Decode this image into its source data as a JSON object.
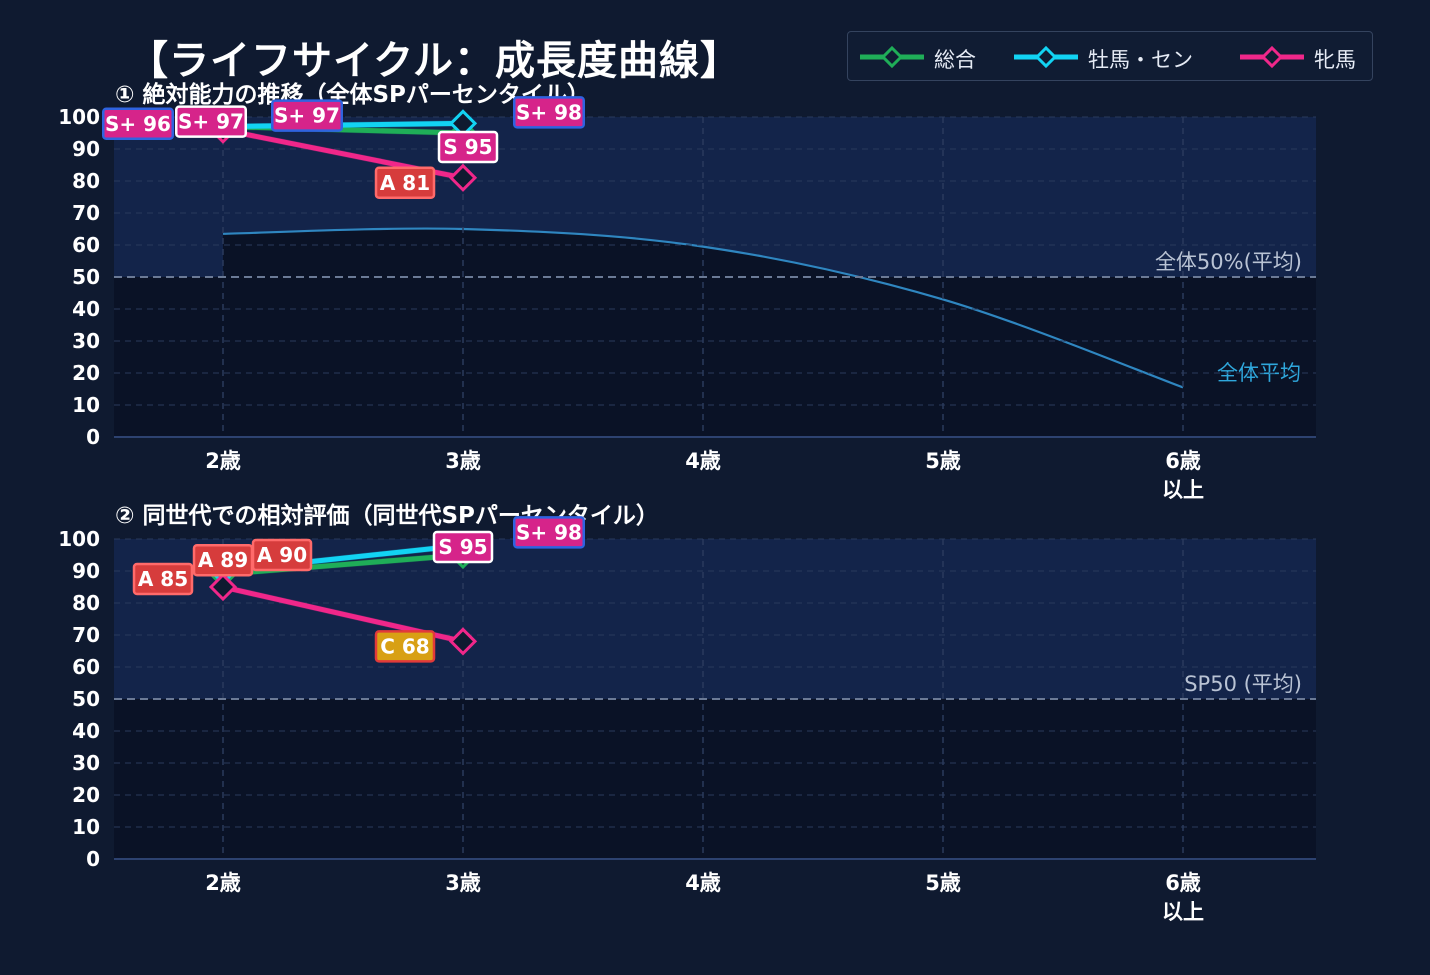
{
  "title": "【ライフサイクル：成長度曲線】",
  "legend": [
    {
      "name": "総合",
      "color": "#1fae58"
    },
    {
      "name": "牡馬・セン",
      "color": "#12d3f3"
    },
    {
      "name": "牝馬",
      "color": "#f0278a"
    }
  ],
  "chart_data": [
    {
      "type": "line",
      "title": "① 絶対能力の推移（全体SPパーセンタイル）",
      "categories": [
        [
          "2歳"
        ],
        [
          "3歳"
        ],
        [
          "4歳"
        ],
        [
          "5歳"
        ],
        [
          "6歳",
          "以上"
        ]
      ],
      "ylim": [
        0,
        100
      ],
      "yticks": [
        0,
        10,
        20,
        30,
        40,
        50,
        60,
        70,
        80,
        90,
        100
      ],
      "grid": true,
      "reference_line": {
        "y": 50,
        "label": "全体50%(平均)"
      },
      "average_curve": {
        "label": "全体平均",
        "color": "#2f86c0",
        "points": [
          [
            0,
            63.5
          ],
          [
            1,
            65
          ],
          [
            2,
            59.5
          ],
          [
            3,
            43
          ],
          [
            4,
            15.5
          ]
        ]
      },
      "series": [
        {
          "name": "総合",
          "color": "#1fae58",
          "x": [
            0,
            1
          ],
          "values": [
            97,
            95
          ],
          "labels": [
            "S+ 97",
            "S 95"
          ]
        },
        {
          "name": "牡馬・セン",
          "color": "#12d3f3",
          "x": [
            0,
            1
          ],
          "values": [
            97,
            98
          ],
          "labels": [
            "S+ 97",
            "S+ 98"
          ]
        },
        {
          "name": "牝馬",
          "color": "#f0278a",
          "x": [
            0,
            1
          ],
          "values": [
            96,
            81
          ],
          "labels": [
            "S+ 96",
            "A 81"
          ]
        }
      ]
    },
    {
      "type": "line",
      "title": "② 同世代での相対評価（同世代SPパーセンタイル）",
      "categories": [
        [
          "2歳"
        ],
        [
          "3歳"
        ],
        [
          "4歳"
        ],
        [
          "5歳"
        ],
        [
          "6歳",
          "以上"
        ]
      ],
      "ylim": [
        0,
        100
      ],
      "yticks": [
        0,
        10,
        20,
        30,
        40,
        50,
        60,
        70,
        80,
        90,
        100
      ],
      "grid": true,
      "reference_line": {
        "y": 50,
        "label": "SP50 (平均)"
      },
      "series": [
        {
          "name": "総合",
          "color": "#1fae58",
          "x": [
            0,
            1
          ],
          "values": [
            89,
            95
          ],
          "labels": [
            "A 89",
            "S 95"
          ]
        },
        {
          "name": "牡馬・セン",
          "color": "#12d3f3",
          "x": [
            0,
            1
          ],
          "values": [
            90,
            98
          ],
          "labels": [
            "A 90",
            "S+ 98"
          ]
        },
        {
          "name": "牝馬",
          "color": "#f0278a",
          "x": [
            0,
            1
          ],
          "values": [
            85,
            68
          ],
          "labels": [
            "A 85",
            "C 68"
          ]
        }
      ]
    }
  ]
}
